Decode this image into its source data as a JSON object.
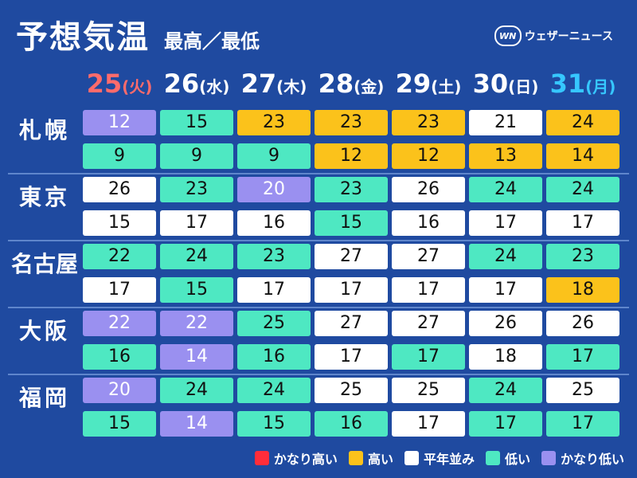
{
  "title": "予想気温",
  "subtitle": "最高／最低",
  "logo": {
    "mark": "WN",
    "text": "ウェザーニュース"
  },
  "days": [
    {
      "num": "25",
      "wd": "(火)",
      "color": "#ff6b6b"
    },
    {
      "num": "26",
      "wd": "(水)",
      "color": "#ffffff"
    },
    {
      "num": "27",
      "wd": "(木)",
      "color": "#ffffff"
    },
    {
      "num": "28",
      "wd": "(金)",
      "color": "#ffffff"
    },
    {
      "num": "29",
      "wd": "(土)",
      "color": "#ffffff"
    },
    {
      "num": "30",
      "wd": "(日)",
      "color": "#ffffff"
    },
    {
      "num": "31",
      "wd": "(月)",
      "color": "#36c7ff"
    }
  ],
  "cities": [
    {
      "name": "札幌",
      "high": [
        {
          "v": "12",
          "c": "vlow"
        },
        {
          "v": "15",
          "c": "low"
        },
        {
          "v": "23",
          "c": "high"
        },
        {
          "v": "23",
          "c": "high"
        },
        {
          "v": "23",
          "c": "high"
        },
        {
          "v": "21",
          "c": "normal"
        },
        {
          "v": "24",
          "c": "high"
        }
      ],
      "low": [
        {
          "v": "9",
          "c": "low"
        },
        {
          "v": "9",
          "c": "low"
        },
        {
          "v": "9",
          "c": "low"
        },
        {
          "v": "12",
          "c": "high"
        },
        {
          "v": "12",
          "c": "high"
        },
        {
          "v": "13",
          "c": "high"
        },
        {
          "v": "14",
          "c": "high"
        }
      ]
    },
    {
      "name": "東京",
      "high": [
        {
          "v": "26",
          "c": "normal"
        },
        {
          "v": "23",
          "c": "low"
        },
        {
          "v": "20",
          "c": "vlow"
        },
        {
          "v": "23",
          "c": "low"
        },
        {
          "v": "26",
          "c": "normal"
        },
        {
          "v": "24",
          "c": "low"
        },
        {
          "v": "24",
          "c": "low"
        }
      ],
      "low": [
        {
          "v": "15",
          "c": "normal"
        },
        {
          "v": "17",
          "c": "normal"
        },
        {
          "v": "16",
          "c": "normal"
        },
        {
          "v": "15",
          "c": "low"
        },
        {
          "v": "16",
          "c": "normal"
        },
        {
          "v": "17",
          "c": "normal"
        },
        {
          "v": "17",
          "c": "normal"
        }
      ]
    },
    {
      "name": "名古屋",
      "high": [
        {
          "v": "22",
          "c": "low"
        },
        {
          "v": "24",
          "c": "low"
        },
        {
          "v": "23",
          "c": "low"
        },
        {
          "v": "27",
          "c": "normal"
        },
        {
          "v": "27",
          "c": "normal"
        },
        {
          "v": "24",
          "c": "low"
        },
        {
          "v": "23",
          "c": "low"
        }
      ],
      "low": [
        {
          "v": "17",
          "c": "normal"
        },
        {
          "v": "15",
          "c": "low"
        },
        {
          "v": "17",
          "c": "normal"
        },
        {
          "v": "17",
          "c": "normal"
        },
        {
          "v": "17",
          "c": "normal"
        },
        {
          "v": "17",
          "c": "normal"
        },
        {
          "v": "18",
          "c": "high"
        }
      ]
    },
    {
      "name": "大阪",
      "high": [
        {
          "v": "22",
          "c": "vlow"
        },
        {
          "v": "22",
          "c": "vlow"
        },
        {
          "v": "25",
          "c": "low"
        },
        {
          "v": "27",
          "c": "normal"
        },
        {
          "v": "27",
          "c": "normal"
        },
        {
          "v": "26",
          "c": "normal"
        },
        {
          "v": "26",
          "c": "normal"
        }
      ],
      "low": [
        {
          "v": "16",
          "c": "low"
        },
        {
          "v": "14",
          "c": "vlow"
        },
        {
          "v": "16",
          "c": "low"
        },
        {
          "v": "17",
          "c": "normal"
        },
        {
          "v": "17",
          "c": "low"
        },
        {
          "v": "18",
          "c": "normal"
        },
        {
          "v": "17",
          "c": "low"
        }
      ]
    },
    {
      "name": "福岡",
      "high": [
        {
          "v": "20",
          "c": "vlow"
        },
        {
          "v": "24",
          "c": "low"
        },
        {
          "v": "24",
          "c": "low"
        },
        {
          "v": "25",
          "c": "normal"
        },
        {
          "v": "25",
          "c": "normal"
        },
        {
          "v": "24",
          "c": "low"
        },
        {
          "v": "25",
          "c": "normal"
        }
      ],
      "low": [
        {
          "v": "15",
          "c": "low"
        },
        {
          "v": "14",
          "c": "vlow"
        },
        {
          "v": "15",
          "c": "low"
        },
        {
          "v": "16",
          "c": "low"
        },
        {
          "v": "17",
          "c": "normal"
        },
        {
          "v": "17",
          "c": "low"
        },
        {
          "v": "17",
          "c": "low"
        }
      ]
    }
  ],
  "legend": [
    {
      "label": "かなり高い",
      "cat": "vhigh",
      "color": "#ff2d3a"
    },
    {
      "label": "高い",
      "cat": "high",
      "color": "#fbc21b"
    },
    {
      "label": "平年並み",
      "cat": "normal",
      "color": "#ffffff"
    },
    {
      "label": "低い",
      "cat": "low",
      "color": "#4ee8c2"
    },
    {
      "label": "かなり低い",
      "cat": "vlow",
      "color": "#9a90f0"
    }
  ]
}
